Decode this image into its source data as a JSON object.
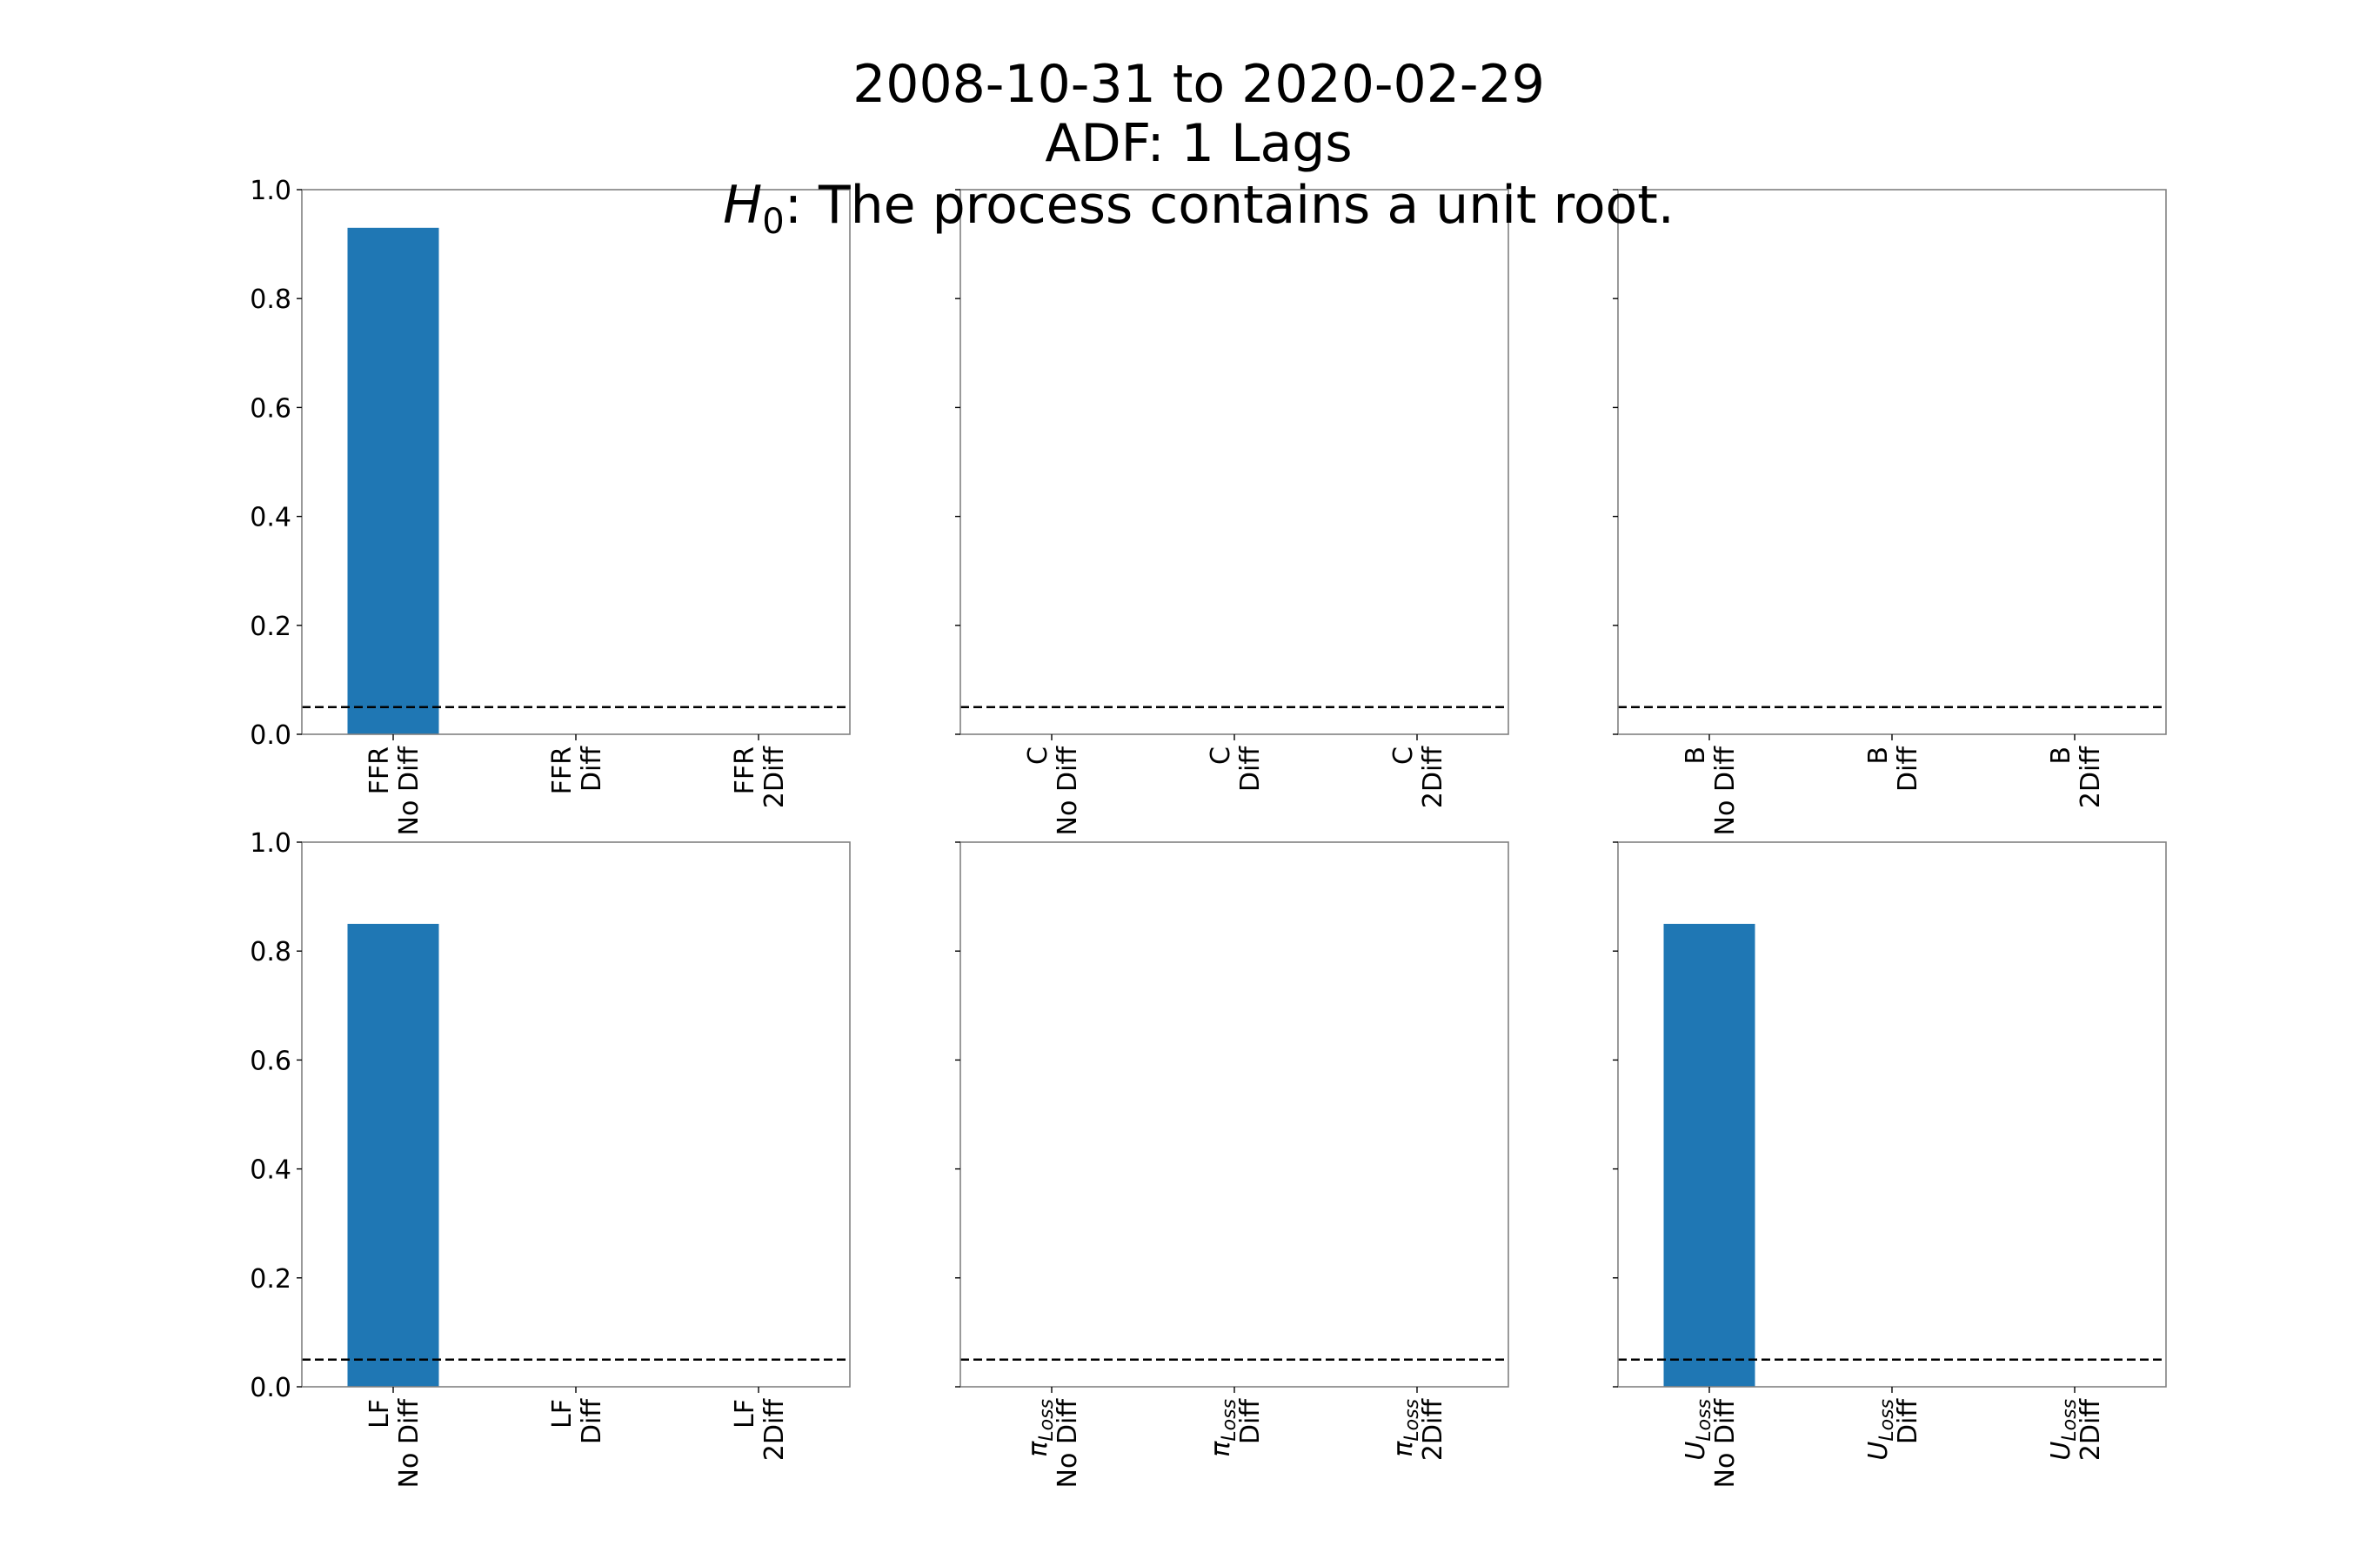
{
  "title": {
    "line1": "2008-10-31 to 2020-02-29",
    "line2": "ADF: 1 Lags",
    "line3_math": "H",
    "line3_sub": "0",
    "line3_rest": ":  The process contains a unit root."
  },
  "colors": {
    "bar": "#1f77b4",
    "threshold": "#000000",
    "axes": "#808080"
  },
  "chart_data": [
    {
      "type": "bar",
      "title": "",
      "categories": [
        {
          "label": "FFR",
          "sub": "",
          "suffix": "No Diff"
        },
        {
          "label": "FFR",
          "sub": "",
          "suffix": "Diff"
        },
        {
          "label": "FFR",
          "sub": "",
          "suffix": "2Diff"
        }
      ],
      "values": [
        0.93,
        0,
        0
      ],
      "threshold": 0.05,
      "ylim": [
        0,
        1.0
      ],
      "yticks": [
        "0.0",
        "0.2",
        "0.4",
        "0.6",
        "0.8",
        "1.0"
      ],
      "show_ytick_labels": true
    },
    {
      "type": "bar",
      "title": "",
      "categories": [
        {
          "label": "C",
          "sub": "",
          "suffix": "No Diff"
        },
        {
          "label": "C",
          "sub": "",
          "suffix": "Diff"
        },
        {
          "label": "C",
          "sub": "",
          "suffix": "2Diff"
        }
      ],
      "values": [
        0,
        0,
        0
      ],
      "threshold": 0.05,
      "ylim": [
        0,
        1.0
      ],
      "yticks": [
        "0.0",
        "0.2",
        "0.4",
        "0.6",
        "0.8",
        "1.0"
      ],
      "show_ytick_labels": false
    },
    {
      "type": "bar",
      "title": "",
      "categories": [
        {
          "label": "B",
          "sub": "",
          "suffix": "No Diff"
        },
        {
          "label": "B",
          "sub": "",
          "suffix": "Diff"
        },
        {
          "label": "B",
          "sub": "",
          "suffix": "2Diff"
        }
      ],
      "values": [
        0,
        0,
        0
      ],
      "threshold": 0.05,
      "ylim": [
        0,
        1.0
      ],
      "yticks": [
        "0.0",
        "0.2",
        "0.4",
        "0.6",
        "0.8",
        "1.0"
      ],
      "show_ytick_labels": false
    },
    {
      "type": "bar",
      "title": "",
      "categories": [
        {
          "label": "LF",
          "sub": "",
          "suffix": "No Diff"
        },
        {
          "label": "LF",
          "sub": "",
          "suffix": "Diff"
        },
        {
          "label": "LF",
          "sub": "",
          "suffix": "2Diff"
        }
      ],
      "values": [
        0.85,
        0,
        0
      ],
      "threshold": 0.05,
      "ylim": [
        0,
        1.0
      ],
      "yticks": [
        "0.0",
        "0.2",
        "0.4",
        "0.6",
        "0.8",
        "1.0"
      ],
      "show_ytick_labels": true
    },
    {
      "type": "bar",
      "title": "",
      "categories": [
        {
          "label": "π",
          "sub": "Loss",
          "suffix": "No Diff"
        },
        {
          "label": "π",
          "sub": "Loss",
          "suffix": "Diff"
        },
        {
          "label": "π",
          "sub": "Loss",
          "suffix": "2Diff"
        }
      ],
      "values": [
        0,
        0,
        0
      ],
      "threshold": 0.05,
      "ylim": [
        0,
        1.0
      ],
      "yticks": [
        "0.0",
        "0.2",
        "0.4",
        "0.6",
        "0.8",
        "1.0"
      ],
      "show_ytick_labels": false
    },
    {
      "type": "bar",
      "title": "",
      "categories": [
        {
          "label": "U",
          "sub": "Loss",
          "suffix": "No Diff"
        },
        {
          "label": "U",
          "sub": "Loss",
          "suffix": "Diff"
        },
        {
          "label": "U",
          "sub": "Loss",
          "suffix": "2Diff"
        }
      ],
      "values": [
        0.85,
        0,
        0
      ],
      "threshold": 0.05,
      "ylim": [
        0,
        1.0
      ],
      "yticks": [
        "0.0",
        "0.2",
        "0.4",
        "0.6",
        "0.8",
        "1.0"
      ],
      "show_ytick_labels": false
    }
  ]
}
